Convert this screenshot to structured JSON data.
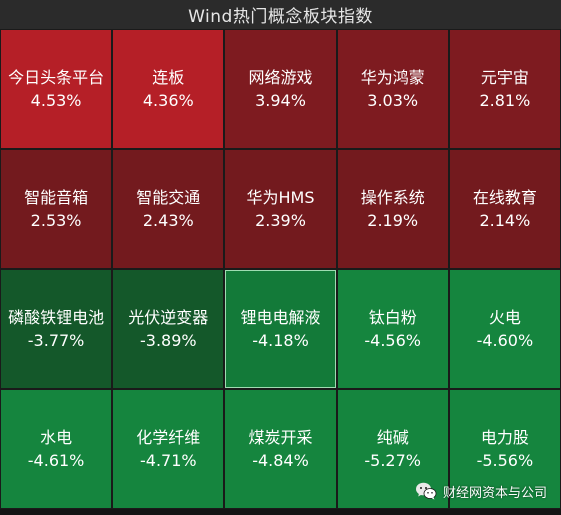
{
  "title": "Wind热门概念板块指数",
  "colors": {
    "header_bg": "#2b2b2b",
    "red_strong": "#b51f27",
    "red_mid": "#8a1c22",
    "red_dark": "#741a1e",
    "green_dark": "#14582a",
    "green_mid": "#137a39",
    "green_bright": "#15883f"
  },
  "tiles": [
    {
      "name": "今日头条平台",
      "value": "4.53%",
      "color": "#b51f27"
    },
    {
      "name": "连板",
      "value": "4.36%",
      "color": "#b51f27"
    },
    {
      "name": "网络游戏",
      "value": "3.94%",
      "color": "#7e1b20"
    },
    {
      "name": "华为鸿蒙",
      "value": "3.03%",
      "color": "#7e1b20"
    },
    {
      "name": "元宇宙",
      "value": "2.81%",
      "color": "#7e1b20"
    },
    {
      "name": "智能音箱",
      "value": "2.53%",
      "color": "#731a1e"
    },
    {
      "name": "智能交通",
      "value": "2.43%",
      "color": "#731a1e"
    },
    {
      "name": "华为HMS",
      "value": "2.39%",
      "color": "#731a1e"
    },
    {
      "name": "操作系统",
      "value": "2.19%",
      "color": "#731a1e"
    },
    {
      "name": "在线教育",
      "value": "2.14%",
      "color": "#731a1e"
    },
    {
      "name": "磷酸铁锂电池",
      "value": "-3.77%",
      "color": "#14582a"
    },
    {
      "name": "光伏逆变器",
      "value": "-3.89%",
      "color": "#14582a"
    },
    {
      "name": "锂电电解液",
      "value": "-4.18%",
      "color": "#137a39",
      "selected": true
    },
    {
      "name": "钛白粉",
      "value": "-4.56%",
      "color": "#15853e"
    },
    {
      "name": "火电",
      "value": "-4.60%",
      "color": "#15853e"
    },
    {
      "name": "水电",
      "value": "-4.61%",
      "color": "#15853e"
    },
    {
      "name": "化学纤维",
      "value": "-4.71%",
      "color": "#15853e"
    },
    {
      "name": "煤炭开采",
      "value": "-4.84%",
      "color": "#15853e"
    },
    {
      "name": "纯碱",
      "value": "-5.27%",
      "color": "#15853e"
    },
    {
      "name": "电力股",
      "value": "-5.56%",
      "color": "#15853e"
    }
  ],
  "watermark": {
    "icon": "wechat-icon",
    "text": "财经网资本与公司"
  }
}
